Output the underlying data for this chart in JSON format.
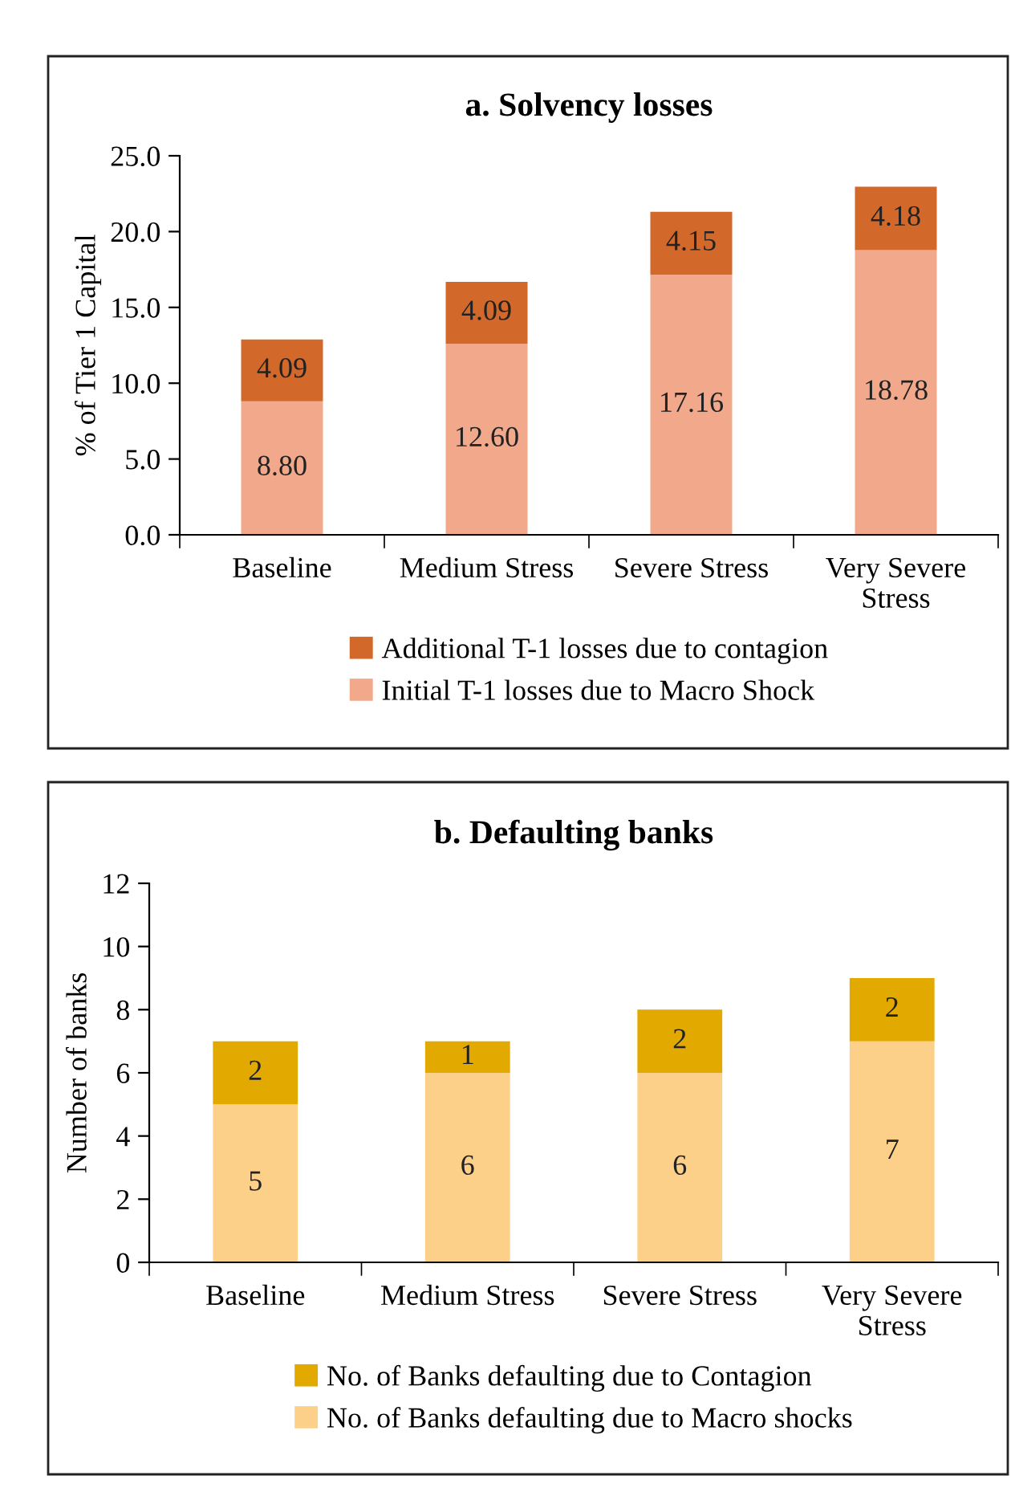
{
  "chart_data": [
    {
      "type": "bar",
      "title": "a. Solvency losses",
      "ylabel": "% of Tier 1 Capital",
      "stacked": true,
      "legend": "bottom",
      "grid": false,
      "categories": [
        "Baseline",
        "Medium Stress",
        "Severe Stress",
        "Very Severe Stress"
      ],
      "ylim": [
        0,
        25
      ],
      "yticks": [
        {
          "value": 0,
          "label": "0.0"
        },
        {
          "value": 5,
          "label": "5.0"
        },
        {
          "value": 10,
          "label": "10.0"
        },
        {
          "value": 15,
          "label": "15.0"
        },
        {
          "value": 20,
          "label": "20.0"
        },
        {
          "value": 25,
          "label": "25.0"
        }
      ],
      "series": [
        {
          "name": "Initial T-1 losses due to Macro Shock",
          "color": "#f2a98b",
          "values": [
            8.8,
            12.6,
            17.16,
            18.78
          ],
          "value_labels": [
            "8.80",
            "12.60",
            "17.16",
            "18.78"
          ]
        },
        {
          "name": "Additional T-1 losses due to contagion",
          "color": "#d2692b",
          "values": [
            4.09,
            4.09,
            4.15,
            4.18
          ],
          "value_labels": [
            "4.09",
            "4.09",
            "4.15",
            "4.18"
          ]
        }
      ]
    },
    {
      "type": "bar",
      "title": "b. Defaulting banks",
      "ylabel": "Number of banks",
      "stacked": true,
      "legend": "bottom",
      "grid": false,
      "data_labels": true,
      "categories": [
        "Baseline",
        "Medium Stress",
        "Severe Stress",
        "Very Severe Stress"
      ],
      "ylim": [
        0,
        12
      ],
      "yticks": [
        0,
        2,
        4,
        6,
        8,
        10,
        12
      ],
      "series": [
        {
          "name": "No. of Banks defaulting due to Macro shocks",
          "color": "#fdd089",
          "values": [
            5,
            6,
            6,
            7
          ]
        },
        {
          "name": "No. of Banks defaulting due to Contagion",
          "color": "#e2a900",
          "values": [
            2,
            1,
            2,
            2
          ]
        }
      ]
    }
  ]
}
